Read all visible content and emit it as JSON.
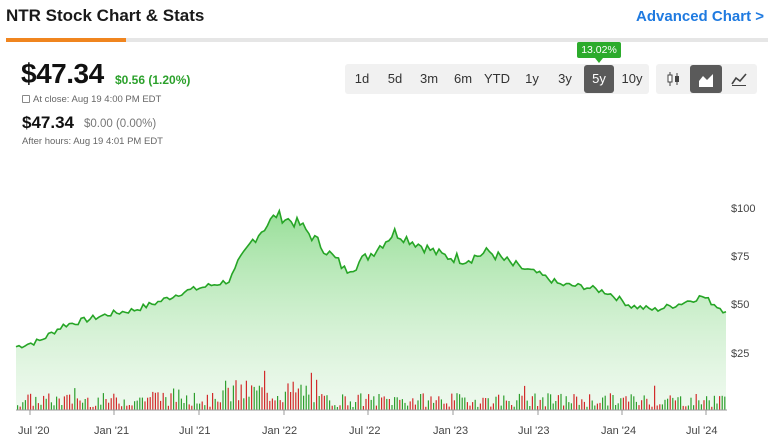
{
  "header": {
    "title": "NTR Stock Chart & Stats",
    "advanced_link": "Advanced Chart >"
  },
  "quote": {
    "price": "$47.34",
    "change": "$0.56 (1.20%)",
    "close_text": "At close: Aug 19 4:00 PM EDT",
    "after_hours_price": "$47.34",
    "after_hours_change": "$0.00 (0.00%)",
    "after_hours_label": "After hours: Aug 19 4:01 PM EDT"
  },
  "ranges": {
    "items": [
      "1d",
      "5d",
      "3m",
      "6m",
      "YTD",
      "1y",
      "3y",
      "5y",
      "10y"
    ],
    "selected": "5y",
    "tooltip": "13.02%"
  },
  "chart_types": {
    "items": [
      "candlestick-icon",
      "area-chart-icon",
      "line-chart-icon"
    ],
    "selected": "area-chart-icon"
  },
  "colors": {
    "accent": "#1f7ae0",
    "tab_active": "#f0851f",
    "up": "#2ca12c",
    "line": "#26a526",
    "volume_up": "#2e9f2e",
    "volume_down": "#d22b2b",
    "selected_bg": "#5a5a5a"
  },
  "chart_data": {
    "type": "area",
    "x_ticks": [
      "Jul '20",
      "Jan '21",
      "Jul '21",
      "Jan '22",
      "Jul '22",
      "Jan '23",
      "Jul '23",
      "Jan '24",
      "Jul '24"
    ],
    "y_ticks": [
      "$100",
      "$75",
      "$50",
      "$25"
    ],
    "ylim": [
      0,
      110
    ],
    "x": [
      "2020-08",
      "2020-10",
      "2020-12",
      "2021-02",
      "2021-04",
      "2021-06",
      "2021-08",
      "2021-10",
      "2021-12",
      "2022-01",
      "2022-02",
      "2022-03",
      "2022-04",
      "2022-05",
      "2022-06",
      "2022-07",
      "2022-08",
      "2022-09",
      "2022-10",
      "2022-11",
      "2022-12",
      "2023-02",
      "2023-04",
      "2023-06",
      "2023-08",
      "2023-10",
      "2023-12",
      "2024-02",
      "2024-04",
      "2024-06",
      "2024-08"
    ],
    "values": [
      29,
      32,
      40,
      43,
      46,
      48,
      52,
      57,
      60,
      63,
      84,
      97,
      92,
      80,
      68,
      77,
      88,
      82,
      76,
      74,
      78,
      71,
      67,
      61,
      60,
      57,
      50,
      48,
      51,
      55,
      47
    ],
    "volume_bars": "green/red daily volume bars along bottom",
    "grid": false
  }
}
